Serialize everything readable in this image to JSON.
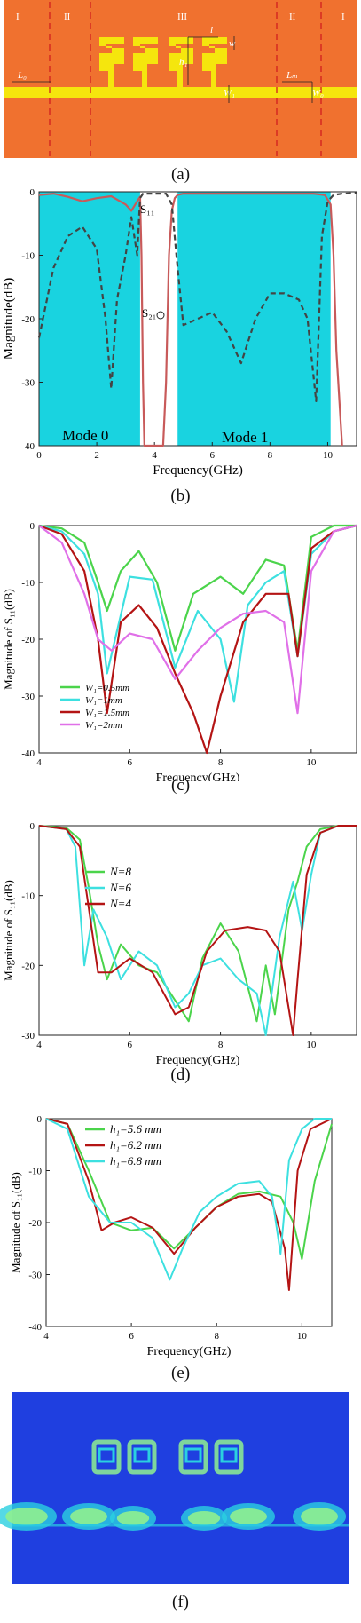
{
  "panels": {
    "a": {
      "caption": "(a)",
      "region_labels": [
        "I",
        "II",
        "III",
        "II",
        "I"
      ],
      "dimension_labels": {
        "l": "l",
        "w": "w",
        "h1": "h₁",
        "L0_left": "L₀",
        "Lm": "Lₘ",
        "W1": "W₁",
        "W0": "W₀"
      },
      "colors": {
        "substrate": "#f0712f",
        "metal": "#f5e60d",
        "dash": "#d21e1e"
      }
    },
    "b": {
      "caption": "(b)",
      "xlabel": "Frequency(GHz)",
      "ylabel": "Magnitude(dB)",
      "xticks": [
        "0",
        "2",
        "4",
        "6",
        "8",
        "10"
      ],
      "yticks": [
        "0",
        "-10",
        "-20",
        "-30",
        "-40"
      ],
      "annotations": {
        "s11": "S₁₁",
        "s21": "S₂₁",
        "mode0": "Mode 0",
        "mode1": "Mode 1"
      },
      "colors": {
        "band": "#19d3e0",
        "s21": "#c85a5a",
        "s11": "#444444"
      }
    },
    "c": {
      "caption": "(c)",
      "xlabel": "Frequency(GHz)",
      "ylabel": "Magnitude of S₁₁(dB)",
      "xticks": [
        "4",
        "6",
        "8",
        "10"
      ],
      "yticks": [
        "0",
        "-10",
        "-20",
        "-30",
        "-40"
      ],
      "legend": [
        "W₁=0.5mm",
        "W₁=1mm",
        "W₁=1.5mm",
        "W₁=2mm"
      ],
      "colors": [
        "#4bd44b",
        "#3de0e0",
        "#b41414",
        "#e070e8"
      ]
    },
    "d": {
      "caption": "(d)",
      "xlabel": "Frequency(GHz)",
      "ylabel": "Magnitude of S₁₁(dB)",
      "xticks": [
        "4",
        "6",
        "8",
        "10"
      ],
      "yticks": [
        "0",
        "-10",
        "-20",
        "-30"
      ],
      "legend": [
        "N=8",
        "N=6",
        "N=4"
      ],
      "colors": [
        "#4bd44b",
        "#3de0e0",
        "#b41414"
      ]
    },
    "e": {
      "caption": "(e)",
      "xlabel": "Frequency(GHz)",
      "ylabel": "Magnitude of S₁₁(dB)",
      "xticks": [
        "4",
        "6",
        "8",
        "10"
      ],
      "yticks": [
        "0",
        "-10",
        "-20",
        "-30",
        "-40"
      ],
      "legend": [
        "h₁=5.6 mm",
        "h₁=6.2 mm",
        "h₁=6.8 mm"
      ],
      "colors": [
        "#4bd44b",
        "#b41414",
        "#3de0e0"
      ]
    },
    "f": {
      "caption": "(f)",
      "colors": {
        "bg": "#1f3fe0",
        "field_hi": "#8ff08f",
        "field_mid": "#2ad0e0"
      }
    }
  },
  "chart_data": [
    {
      "panel": "b",
      "type": "line",
      "xlabel": "Frequency(GHz)",
      "ylabel": "Magnitude(dB)",
      "xlim": [
        0,
        11
      ],
      "ylim": [
        -40,
        0
      ],
      "bands": [
        {
          "label": "Mode 0",
          "x": [
            0,
            3.5
          ]
        },
        {
          "label": "Mode 1",
          "x": [
            4.8,
            10.1
          ]
        }
      ],
      "series": [
        {
          "name": "S₂₁",
          "x": [
            0,
            0.5,
            1,
            1.5,
            2,
            2.5,
            3,
            3.2,
            3.4,
            3.5,
            3.55,
            3.6,
            3.65,
            4.3,
            4.4,
            4.5,
            4.6,
            4.7,
            4.8,
            5,
            6,
            7,
            8,
            9,
            9.5,
            9.9,
            10.1,
            10.2,
            10.3,
            10.5
          ],
          "y": [
            -0.5,
            -0.3,
            -0.8,
            -1.5,
            -1,
            -0.7,
            -2,
            -3,
            -1.5,
            -0.8,
            -10,
            -30,
            -40,
            -40,
            -30,
            -10,
            -3,
            -1,
            -0.5,
            -0.3,
            -0.3,
            -0.3,
            -0.3,
            -0.3,
            -0.3,
            -0.5,
            -2,
            -10,
            -25,
            -40
          ]
        },
        {
          "name": "S₁₁",
          "x": [
            0,
            0.5,
            1,
            1.5,
            2,
            2.3,
            2.5,
            2.7,
            3,
            3.2,
            3.4,
            3.5,
            3.6,
            4.4,
            4.6,
            4.8,
            5,
            5.5,
            6,
            6.5,
            7,
            7.5,
            8,
            8.5,
            9,
            9.3,
            9.6,
            9.7,
            9.8,
            10,
            10.2,
            10.5,
            11
          ],
          "y": [
            -23,
            -12,
            -7,
            -5.5,
            -9,
            -20,
            -31,
            -17,
            -10,
            -4,
            -10,
            -1,
            -0.3,
            -0.3,
            -2,
            -12,
            -21,
            -20,
            -19,
            -22,
            -27,
            -20,
            -16,
            -16,
            -17,
            -20,
            -33,
            -20,
            -7,
            -1.5,
            -0.5,
            -0.3,
            -0.2
          ]
        }
      ]
    },
    {
      "panel": "c",
      "type": "line",
      "xlabel": "Frequency(GHz)",
      "ylabel": "Magnitude of S₁₁(dB)",
      "xlim": [
        4,
        11
      ],
      "ylim": [
        -40,
        0
      ],
      "series": [
        {
          "name": "W₁=0.5mm",
          "x": [
            4,
            4.5,
            5,
            5.3,
            5.5,
            5.8,
            6.2,
            6.6,
            7,
            7.4,
            8,
            8.5,
            9,
            9.4,
            9.7,
            10,
            10.5,
            11
          ],
          "y": [
            0,
            -0.5,
            -3,
            -10,
            -15,
            -8,
            -4.5,
            -10,
            -22,
            -12,
            -9,
            -12,
            -6,
            -7,
            -22,
            -2,
            0,
            0
          ]
        },
        {
          "name": "W₁=1mm",
          "x": [
            4,
            4.5,
            5,
            5.3,
            5.5,
            6,
            6.5,
            7,
            7.5,
            8,
            8.3,
            8.6,
            9,
            9.4,
            9.7,
            10,
            10.5,
            11
          ],
          "y": [
            0,
            -1,
            -5,
            -12,
            -26,
            -9,
            -9.5,
            -25,
            -15,
            -20,
            -31,
            -14,
            -10,
            -8,
            -23,
            -5,
            -1,
            0
          ]
        },
        {
          "name": "W₁=1.5mm",
          "x": [
            4,
            4.5,
            5,
            5.3,
            5.5,
            5.8,
            6.2,
            6.6,
            7,
            7.4,
            7.7,
            8,
            8.5,
            9,
            9.5,
            9.7,
            10,
            10.5,
            11
          ],
          "y": [
            0,
            -1.5,
            -8,
            -20,
            -33,
            -17,
            -14,
            -18,
            -26,
            -33,
            -40,
            -30,
            -17,
            -12,
            -12,
            -23,
            -4,
            -1,
            0
          ]
        },
        {
          "name": "W₁=2mm",
          "x": [
            4,
            4.5,
            5,
            5.3,
            5.6,
            6,
            6.5,
            7,
            7.5,
            8,
            8.5,
            9,
            9.4,
            9.7,
            10,
            10.5,
            11
          ],
          "y": [
            0,
            -3,
            -12,
            -20,
            -22,
            -19,
            -20,
            -27,
            -22,
            -18,
            -15.5,
            -15,
            -17,
            -33,
            -8,
            -1,
            0
          ]
        }
      ]
    },
    {
      "panel": "d",
      "type": "line",
      "xlabel": "Frequency(GHz)",
      "ylabel": "Magnitude of S₁₁(dB)",
      "xlim": [
        4,
        11
      ],
      "ylim": [
        -30,
        0
      ],
      "series": [
        {
          "name": "N=8",
          "x": [
            4,
            4.6,
            4.9,
            5.1,
            5.3,
            5.5,
            5.8,
            6.2,
            6.6,
            7,
            7.3,
            7.6,
            8,
            8.4,
            8.8,
            9,
            9.2,
            9.5,
            9.7,
            9.9,
            10.2,
            10.6,
            11
          ],
          "y": [
            0,
            -0.3,
            -2,
            -9,
            -17,
            -22,
            -17,
            -20,
            -21,
            -25,
            -28,
            -19,
            -14,
            -18,
            -28,
            -20,
            -27,
            -12,
            -8,
            -3,
            -0.5,
            0,
            0
          ]
        },
        {
          "name": "N=6",
          "x": [
            4,
            4.6,
            4.8,
            5,
            5.2,
            5.5,
            5.8,
            6.2,
            6.6,
            7,
            7.3,
            7.6,
            8,
            8.4,
            8.8,
            9,
            9.3,
            9.6,
            9.8,
            10,
            10.2,
            10.6,
            11
          ],
          "y": [
            0,
            -0.5,
            -3,
            -20,
            -12,
            -16,
            -22,
            -18,
            -20,
            -26,
            -24,
            -20,
            -19,
            -22,
            -24,
            -30,
            -16,
            -8,
            -15,
            -7,
            -1,
            0,
            0
          ]
        },
        {
          "name": "N=4",
          "x": [
            4,
            4.6,
            4.9,
            5.1,
            5.3,
            5.6,
            6,
            6.5,
            7,
            7.3,
            7.7,
            8.1,
            8.6,
            9,
            9.3,
            9.6,
            9.7,
            9.9,
            10.2,
            10.6,
            11
          ],
          "y": [
            0,
            -0.5,
            -3,
            -12,
            -21,
            -21,
            -19,
            -21,
            -27,
            -26,
            -18,
            -15,
            -14.5,
            -15,
            -18,
            -30,
            -22,
            -7,
            -1,
            0,
            0
          ]
        }
      ]
    },
    {
      "panel": "e",
      "type": "line",
      "xlabel": "Frequency(GHz)",
      "ylabel": "Magnitude of S₁₁(dB)",
      "xlim": [
        4,
        10.7
      ],
      "ylim": [
        -40,
        0
      ],
      "series": [
        {
          "name": "h₁=5.6 mm",
          "x": [
            4,
            4.5,
            5,
            5.5,
            6,
            6.5,
            7,
            7.5,
            8,
            8.5,
            9,
            9.5,
            9.8,
            10,
            10.3,
            10.7
          ],
          "y": [
            0,
            -1,
            -10,
            -20,
            -21.5,
            -21,
            -25,
            -21,
            -17,
            -14.5,
            -14,
            -15,
            -20,
            -27,
            -12,
            -1
          ]
        },
        {
          "name": "h₁=6.2 mm",
          "x": [
            4,
            4.5,
            5,
            5.3,
            5.6,
            6,
            6.5,
            7,
            7.5,
            8,
            8.5,
            9,
            9.3,
            9.6,
            9.7,
            9.9,
            10.2,
            10.7
          ],
          "y": [
            0,
            -1,
            -12,
            -21.5,
            -20,
            -19,
            -21,
            -26,
            -21,
            -17,
            -15,
            -14.5,
            -16,
            -25,
            -33,
            -10,
            -2,
            0
          ]
        },
        {
          "name": "h₁=6.8 mm",
          "x": [
            4,
            4.5,
            5,
            5.5,
            6,
            6.5,
            6.9,
            7.2,
            7.6,
            8,
            8.5,
            9,
            9.3,
            9.5,
            9.7,
            10,
            10.3,
            10.7
          ],
          "y": [
            0,
            -2,
            -15,
            -20,
            -20,
            -23,
            -31,
            -25,
            -18,
            -15,
            -12.5,
            -12,
            -15,
            -26,
            -8,
            -2,
            0,
            0
          ]
        }
      ]
    }
  ]
}
